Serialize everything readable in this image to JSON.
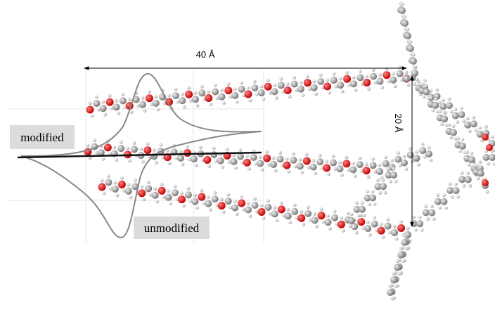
{
  "labels": {
    "length": "40 Å",
    "width": "20 Å",
    "modified": "modified",
    "unmodified": "unmodified"
  }
}
